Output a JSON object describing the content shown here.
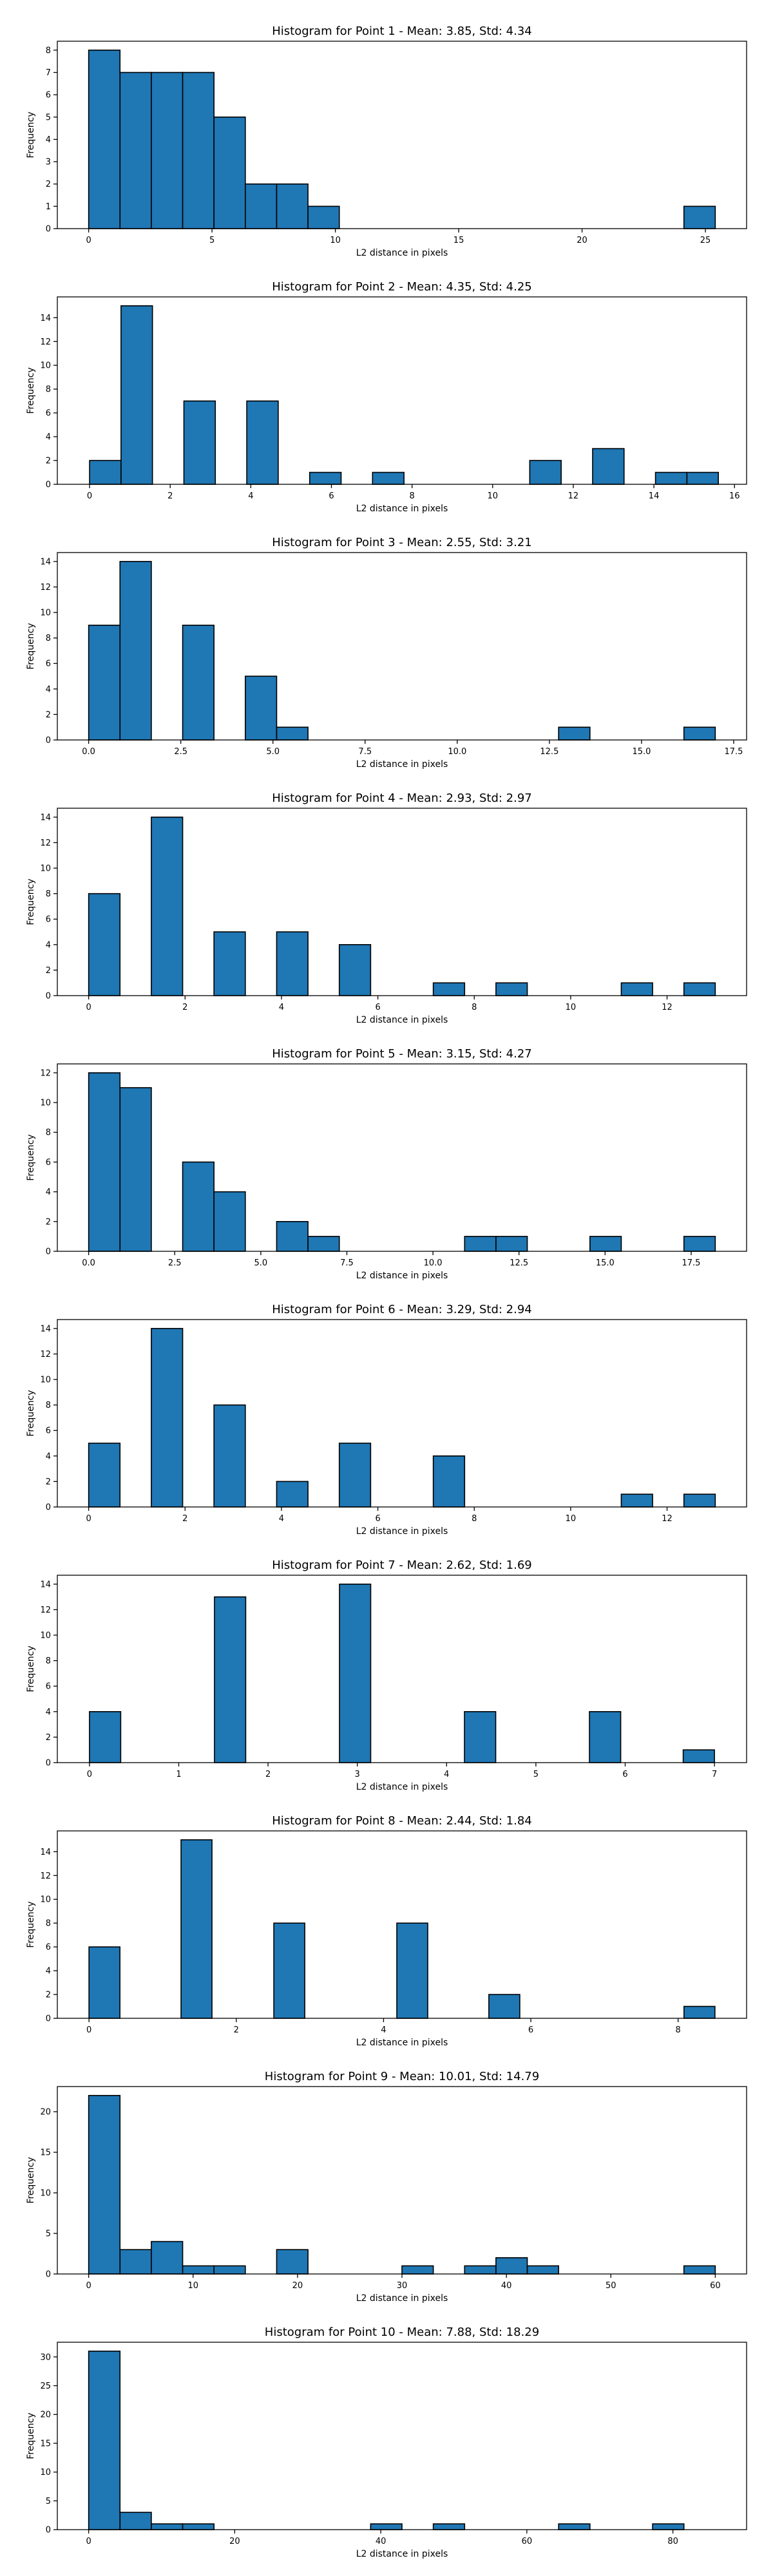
{
  "bar_color": "#1f77b4",
  "chart_data": [
    {
      "type": "bar",
      "title": "Histogram for Point 1 - Mean: 3.85, Std: 4.34",
      "xlabel": "L2 distance in pixels",
      "ylabel": "Frequency",
      "xlim": [
        -1.27,
        26.67
      ],
      "ylim": [
        0,
        8.4
      ],
      "xticks": [
        0,
        5,
        10,
        15,
        20,
        25
      ],
      "xtick_labels": [
        "0",
        "5",
        "10",
        "15",
        "20",
        "25"
      ],
      "yticks": [
        0,
        1,
        2,
        3,
        4,
        5,
        6,
        7,
        8
      ],
      "ytick_labels": [
        "0",
        "1",
        "2",
        "3",
        "4",
        "5",
        "6",
        "7",
        "8"
      ],
      "bins": [
        {
          "x0": 0.0,
          "x1": 1.27,
          "count": 8
        },
        {
          "x0": 1.27,
          "x1": 2.54,
          "count": 7
        },
        {
          "x0": 2.54,
          "x1": 3.81,
          "count": 7
        },
        {
          "x0": 3.81,
          "x1": 5.08,
          "count": 7
        },
        {
          "x0": 5.08,
          "x1": 6.35,
          "count": 5
        },
        {
          "x0": 6.35,
          "x1": 7.62,
          "count": 2
        },
        {
          "x0": 7.62,
          "x1": 8.89,
          "count": 2
        },
        {
          "x0": 8.89,
          "x1": 10.16,
          "count": 1
        },
        {
          "x0": 24.13,
          "x1": 25.4,
          "count": 1
        }
      ]
    },
    {
      "type": "bar",
      "title": "Histogram for Point 2 - Mean: 4.35, Std: 4.25",
      "xlabel": "L2 distance in pixels",
      "ylabel": "Frequency",
      "xlim": [
        -0.8,
        16.3
      ],
      "ylim": [
        0,
        15.75
      ],
      "xticks": [
        0,
        2,
        4,
        6,
        8,
        10,
        12,
        14,
        16
      ],
      "xtick_labels": [
        "0",
        "2",
        "4",
        "6",
        "8",
        "10",
        "12",
        "14",
        "16"
      ],
      "yticks": [
        0,
        2,
        4,
        6,
        8,
        10,
        12,
        14
      ],
      "ytick_labels": [
        "0",
        "2",
        "4",
        "6",
        "8",
        "10",
        "12",
        "14"
      ],
      "bins": [
        {
          "x0": 0.0,
          "x1": 0.78,
          "count": 2
        },
        {
          "x0": 0.78,
          "x1": 1.56,
          "count": 15
        },
        {
          "x0": 2.34,
          "x1": 3.12,
          "count": 7
        },
        {
          "x0": 3.9,
          "x1": 4.68,
          "count": 7
        },
        {
          "x0": 5.46,
          "x1": 6.24,
          "count": 1
        },
        {
          "x0": 7.02,
          "x1": 7.8,
          "count": 1
        },
        {
          "x0": 10.92,
          "x1": 11.7,
          "count": 2
        },
        {
          "x0": 12.48,
          "x1": 13.26,
          "count": 3
        },
        {
          "x0": 14.04,
          "x1": 14.82,
          "count": 1
        },
        {
          "x0": 14.82,
          "x1": 15.6,
          "count": 1
        }
      ]
    },
    {
      "type": "bar",
      "title": "Histogram for Point 3 - Mean: 2.55, Std: 3.21",
      "xlabel": "L2 distance in pixels",
      "ylabel": "Frequency",
      "xlim": [
        -0.85,
        17.85
      ],
      "ylim": [
        0,
        14.7
      ],
      "xticks": [
        0.0,
        2.5,
        5.0,
        7.5,
        10.0,
        12.5,
        15.0,
        17.5
      ],
      "xtick_labels": [
        "0.0",
        "2.5",
        "5.0",
        "7.5",
        "10.0",
        "12.5",
        "15.0",
        "17.5"
      ],
      "yticks": [
        0,
        2,
        4,
        6,
        8,
        10,
        12,
        14
      ],
      "ytick_labels": [
        "0",
        "2",
        "4",
        "6",
        "8",
        "10",
        "12",
        "14"
      ],
      "bins": [
        {
          "x0": 0.0,
          "x1": 0.85,
          "count": 9
        },
        {
          "x0": 0.85,
          "x1": 1.7,
          "count": 14
        },
        {
          "x0": 2.55,
          "x1": 3.4,
          "count": 9
        },
        {
          "x0": 4.25,
          "x1": 5.1,
          "count": 5
        },
        {
          "x0": 5.1,
          "x1": 5.95,
          "count": 1
        },
        {
          "x0": 12.75,
          "x1": 13.6,
          "count": 1
        },
        {
          "x0": 16.15,
          "x1": 17.0,
          "count": 1
        }
      ]
    },
    {
      "type": "bar",
      "title": "Histogram for Point 4 - Mean: 2.93, Std: 2.97",
      "xlabel": "L2 distance in pixels",
      "ylabel": "Frequency",
      "xlim": [
        -0.65,
        13.65
      ],
      "ylim": [
        0,
        14.7
      ],
      "xticks": [
        0,
        2,
        4,
        6,
        8,
        10,
        12
      ],
      "xtick_labels": [
        "0",
        "2",
        "4",
        "6",
        "8",
        "10",
        "12"
      ],
      "yticks": [
        0,
        2,
        4,
        6,
        8,
        10,
        12,
        14
      ],
      "ytick_labels": [
        "0",
        "2",
        "4",
        "6",
        "8",
        "10",
        "12",
        "14"
      ],
      "bins": [
        {
          "x0": 0.0,
          "x1": 0.65,
          "count": 8
        },
        {
          "x0": 1.3,
          "x1": 1.95,
          "count": 14
        },
        {
          "x0": 2.6,
          "x1": 3.25,
          "count": 5
        },
        {
          "x0": 3.9,
          "x1": 4.55,
          "count": 5
        },
        {
          "x0": 5.2,
          "x1": 5.85,
          "count": 4
        },
        {
          "x0": 7.15,
          "x1": 7.8,
          "count": 1
        },
        {
          "x0": 8.45,
          "x1": 9.1,
          "count": 1
        },
        {
          "x0": 11.05,
          "x1": 11.7,
          "count": 1
        },
        {
          "x0": 12.35,
          "x1": 13.0,
          "count": 1
        }
      ]
    },
    {
      "type": "bar",
      "title": "Histogram for Point 5 - Mean: 3.15, Std: 4.27",
      "xlabel": "L2 distance in pixels",
      "ylabel": "Frequency",
      "xlim": [
        -0.91,
        19.11
      ],
      "ylim": [
        0,
        12.6
      ],
      "xticks": [
        0.0,
        2.5,
        5.0,
        7.5,
        10.0,
        12.5,
        15.0,
        17.5
      ],
      "xtick_labels": [
        "0.0",
        "2.5",
        "5.0",
        "7.5",
        "10.0",
        "12.5",
        "15.0",
        "17.5"
      ],
      "yticks": [
        0,
        2,
        4,
        6,
        8,
        10,
        12
      ],
      "ytick_labels": [
        "0",
        "2",
        "4",
        "6",
        "8",
        "10",
        "12"
      ],
      "bins": [
        {
          "x0": 0.0,
          "x1": 0.91,
          "count": 12
        },
        {
          "x0": 0.91,
          "x1": 1.82,
          "count": 11
        },
        {
          "x0": 2.73,
          "x1": 3.64,
          "count": 6
        },
        {
          "x0": 3.64,
          "x1": 4.55,
          "count": 4
        },
        {
          "x0": 5.46,
          "x1": 6.37,
          "count": 2
        },
        {
          "x0": 6.37,
          "x1": 7.28,
          "count": 1
        },
        {
          "x0": 10.92,
          "x1": 11.83,
          "count": 1
        },
        {
          "x0": 11.83,
          "x1": 12.74,
          "count": 1
        },
        {
          "x0": 14.56,
          "x1": 15.47,
          "count": 1
        },
        {
          "x0": 17.29,
          "x1": 18.2,
          "count": 1
        }
      ]
    },
    {
      "type": "bar",
      "title": "Histogram for Point 6 - Mean: 3.29, Std: 2.94",
      "xlabel": "L2 distance in pixels",
      "ylabel": "Frequency",
      "xlim": [
        -0.65,
        13.65
      ],
      "ylim": [
        0,
        14.7
      ],
      "xticks": [
        0,
        2,
        4,
        6,
        8,
        10,
        12
      ],
      "xtick_labels": [
        "0",
        "2",
        "4",
        "6",
        "8",
        "10",
        "12"
      ],
      "yticks": [
        0,
        2,
        4,
        6,
        8,
        10,
        12,
        14
      ],
      "ytick_labels": [
        "0",
        "2",
        "4",
        "6",
        "8",
        "10",
        "12",
        "14"
      ],
      "bins": [
        {
          "x0": 0.0,
          "x1": 0.65,
          "count": 5
        },
        {
          "x0": 1.3,
          "x1": 1.95,
          "count": 14
        },
        {
          "x0": 2.6,
          "x1": 3.25,
          "count": 8
        },
        {
          "x0": 3.9,
          "x1": 4.55,
          "count": 2
        },
        {
          "x0": 5.2,
          "x1": 5.85,
          "count": 5
        },
        {
          "x0": 7.15,
          "x1": 7.8,
          "count": 4
        },
        {
          "x0": 11.05,
          "x1": 11.7,
          "count": 1
        },
        {
          "x0": 12.35,
          "x1": 13.0,
          "count": 1
        }
      ]
    },
    {
      "type": "bar",
      "title": "Histogram for Point 7 - Mean: 2.62, Std: 1.69",
      "xlabel": "L2 distance in pixels",
      "ylabel": "Frequency",
      "xlim": [
        -0.36,
        7.36
      ],
      "ylim": [
        0,
        14.7
      ],
      "xticks": [
        0,
        1,
        2,
        3,
        4,
        5,
        6,
        7
      ],
      "xtick_labels": [
        "0",
        "1",
        "2",
        "3",
        "4",
        "5",
        "6",
        "7"
      ],
      "yticks": [
        0,
        2,
        4,
        6,
        8,
        10,
        12,
        14
      ],
      "ytick_labels": [
        "0",
        "2",
        "4",
        "6",
        "8",
        "10",
        "12",
        "14"
      ],
      "bins": [
        {
          "x0": 0.0,
          "x1": 0.35,
          "count": 4
        },
        {
          "x0": 1.4,
          "x1": 1.75,
          "count": 13
        },
        {
          "x0": 2.8,
          "x1": 3.15,
          "count": 14
        },
        {
          "x0": 4.2,
          "x1": 4.55,
          "count": 4
        },
        {
          "x0": 5.6,
          "x1": 5.95,
          "count": 4
        },
        {
          "x0": 6.65,
          "x1": 7.0,
          "count": 1
        }
      ]
    },
    {
      "type": "bar",
      "title": "Histogram for Point 8 - Mean: 2.44, Std: 1.84",
      "xlabel": "L2 distance in pixels",
      "ylabel": "Frequency",
      "xlim": [
        -0.43,
        8.93
      ],
      "ylim": [
        0,
        15.75
      ],
      "xticks": [
        0,
        2,
        4,
        6,
        8
      ],
      "xtick_labels": [
        "0",
        "2",
        "4",
        "6",
        "8"
      ],
      "yticks": [
        0,
        2,
        4,
        6,
        8,
        10,
        12,
        14
      ],
      "ytick_labels": [
        "0",
        "2",
        "4",
        "6",
        "8",
        "10",
        "12",
        "14"
      ],
      "bins": [
        {
          "x0": 0.0,
          "x1": 0.42,
          "count": 6
        },
        {
          "x0": 1.25,
          "x1": 1.67,
          "count": 15
        },
        {
          "x0": 2.51,
          "x1": 2.93,
          "count": 8
        },
        {
          "x0": 4.18,
          "x1": 4.6,
          "count": 8
        },
        {
          "x0": 5.43,
          "x1": 5.85,
          "count": 2
        },
        {
          "x0": 8.08,
          "x1": 8.5,
          "count": 1
        }
      ]
    },
    {
      "type": "bar",
      "title": "Histogram for Point 9 - Mean: 10.01, Std: 14.79",
      "xlabel": "L2 distance in pixels",
      "ylabel": "Frequency",
      "xlim": [
        -3.0,
        63.0
      ],
      "ylim": [
        0,
        23.1
      ],
      "xticks": [
        0,
        10,
        20,
        30,
        40,
        50,
        60
      ],
      "xtick_labels": [
        "0",
        "10",
        "20",
        "30",
        "40",
        "50",
        "60"
      ],
      "yticks": [
        0,
        5,
        10,
        15,
        20
      ],
      "ytick_labels": [
        "0",
        "5",
        "10",
        "15",
        "20"
      ],
      "bins": [
        {
          "x0": 0.0,
          "x1": 3.0,
          "count": 22
        },
        {
          "x0": 3.0,
          "x1": 6.0,
          "count": 3
        },
        {
          "x0": 6.0,
          "x1": 9.0,
          "count": 4
        },
        {
          "x0": 9.0,
          "x1": 12.0,
          "count": 1
        },
        {
          "x0": 12.0,
          "x1": 15.0,
          "count": 1
        },
        {
          "x0": 18.0,
          "x1": 21.0,
          "count": 3
        },
        {
          "x0": 30.0,
          "x1": 33.0,
          "count": 1
        },
        {
          "x0": 36.0,
          "x1": 39.0,
          "count": 1
        },
        {
          "x0": 39.0,
          "x1": 42.0,
          "count": 2
        },
        {
          "x0": 42.0,
          "x1": 45.0,
          "count": 1
        },
        {
          "x0": 57.0,
          "x1": 60.0,
          "count": 1
        }
      ]
    },
    {
      "type": "bar",
      "title": "Histogram for Point 10 - Mean: 7.88, Std: 18.29",
      "xlabel": "L2 distance in pixels",
      "ylabel": "Frequency",
      "xlim": [
        -4.29,
        90.09
      ],
      "ylim": [
        0,
        32.55
      ],
      "xticks": [
        0,
        20,
        40,
        60,
        80
      ],
      "xtick_labels": [
        "0",
        "20",
        "40",
        "60",
        "80"
      ],
      "yticks": [
        0,
        5,
        10,
        15,
        20,
        25,
        30
      ],
      "ytick_labels": [
        "0",
        "5",
        "10",
        "15",
        "20",
        "25",
        "30"
      ],
      "bins": [
        {
          "x0": 0.0,
          "x1": 4.29,
          "count": 31
        },
        {
          "x0": 4.29,
          "x1": 8.58,
          "count": 3
        },
        {
          "x0": 8.58,
          "x1": 12.87,
          "count": 1
        },
        {
          "x0": 12.87,
          "x1": 17.16,
          "count": 1
        },
        {
          "x0": 38.61,
          "x1": 42.9,
          "count": 1
        },
        {
          "x0": 47.19,
          "x1": 51.48,
          "count": 1
        },
        {
          "x0": 64.35,
          "x1": 68.64,
          "count": 1
        },
        {
          "x0": 77.22,
          "x1": 81.51,
          "count": 1
        }
      ]
    }
  ]
}
